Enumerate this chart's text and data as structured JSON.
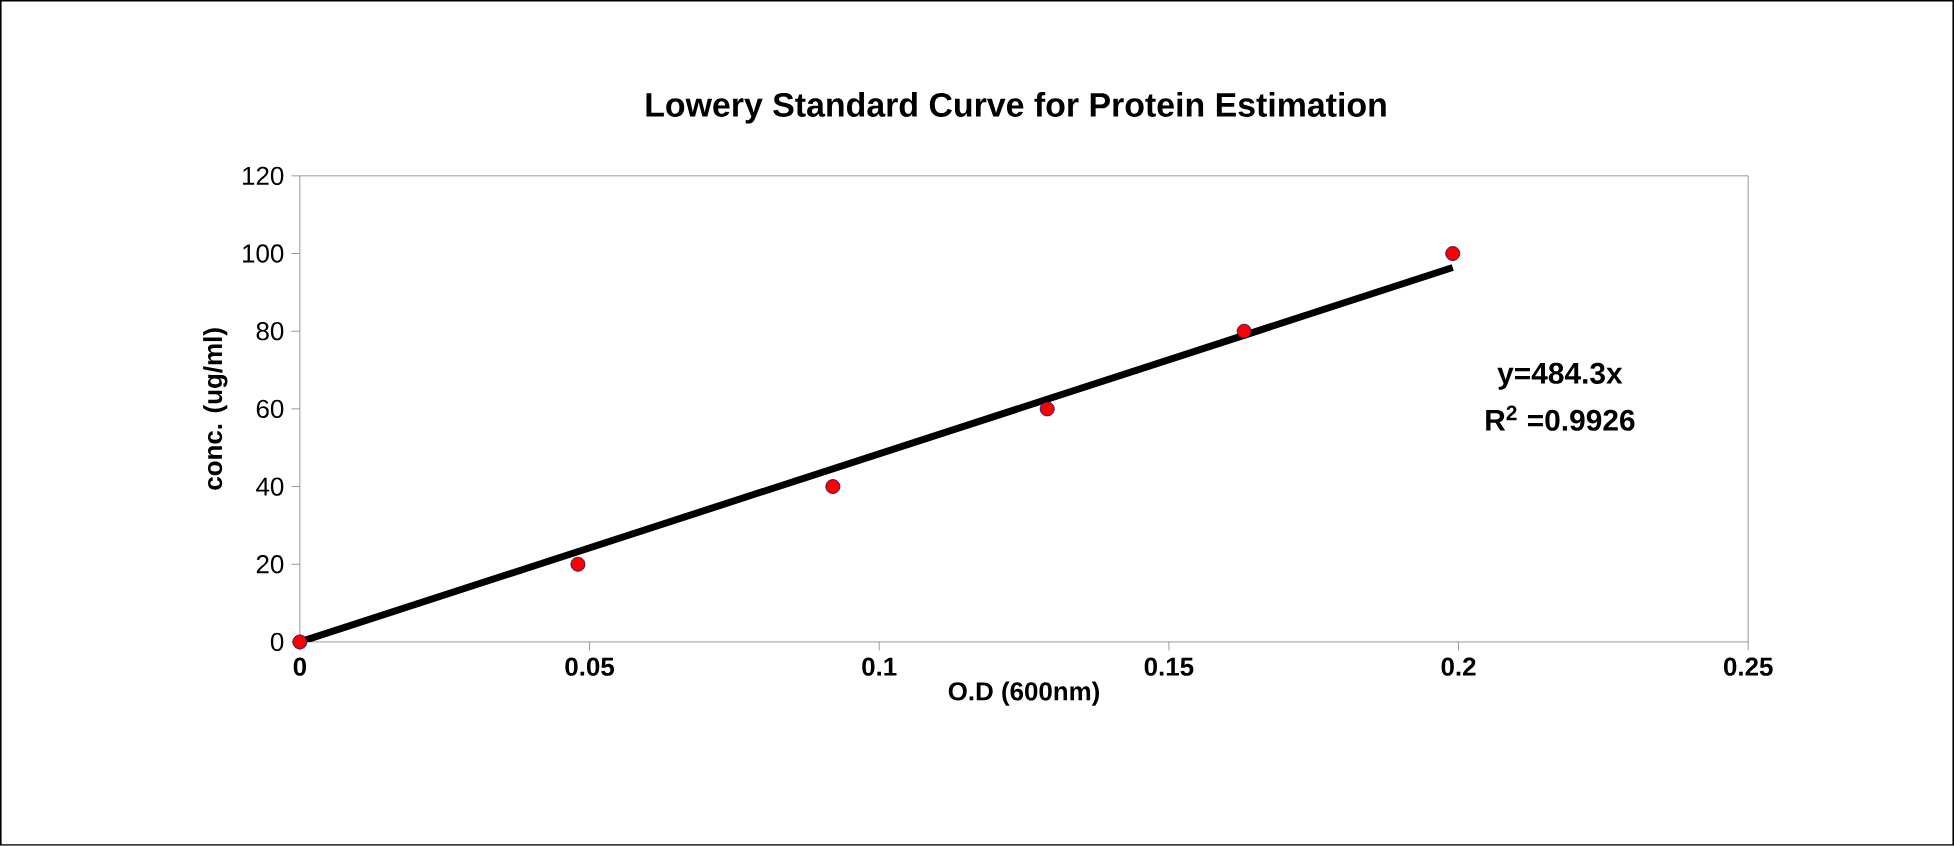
{
  "chart_data": {
    "type": "scatter",
    "title": "Lowery Standard Curve for Protein Estimation",
    "xlabel": "O.D (600nm)",
    "ylabel": "conc. (ug/ml)",
    "x": [
      0,
      0.048,
      0.092,
      0.129,
      0.163,
      0.199
    ],
    "series": [
      {
        "color": "#ff0000",
        "values": [
          0,
          20,
          40,
          60,
          80,
          100
        ],
        "marker": "circle"
      },
      {
        "type": "line",
        "color": "#000000",
        "x": [
          0,
          0.199
        ],
        "values": [
          0,
          96.4
        ],
        "marker": "none"
      }
    ],
    "xlim": [
      0,
      0.25
    ],
    "xticks": [
      0,
      0.05,
      0.1,
      0.15,
      0.2,
      0.25
    ],
    "ylim": [
      0,
      120
    ],
    "yticks": [
      0,
      20,
      40,
      60,
      80,
      100,
      120
    ],
    "grid": false,
    "annotations": [
      "y=484.3x",
      "R$^{2}$ =0.9926"
    ]
  }
}
